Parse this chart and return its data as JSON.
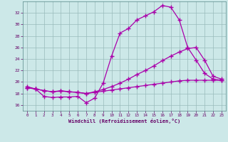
{
  "xlabel": "Windchill (Refroidissement éolien,°C)",
  "background_color": "#cce8e8",
  "line_color": "#aa00aa",
  "grid_color": "#99bbbb",
  "xlim": [
    -0.5,
    23.5
  ],
  "ylim": [
    15.0,
    34.0
  ],
  "yticks": [
    16,
    18,
    20,
    22,
    24,
    26,
    28,
    30,
    32
  ],
  "xticks": [
    0,
    1,
    2,
    3,
    4,
    5,
    6,
    7,
    8,
    9,
    10,
    11,
    12,
    13,
    14,
    15,
    16,
    17,
    18,
    19,
    20,
    21,
    22,
    23
  ],
  "line1_x": [
    0,
    1,
    2,
    3,
    4,
    5,
    6,
    7,
    8,
    9,
    10,
    11,
    12,
    13,
    14,
    15,
    16,
    17,
    18,
    19,
    20,
    21,
    22,
    23
  ],
  "line1_y": [
    19.2,
    18.8,
    17.5,
    17.3,
    17.4,
    17.4,
    17.5,
    16.4,
    17.2,
    19.8,
    24.5,
    28.5,
    29.3,
    30.8,
    31.5,
    32.2,
    33.3,
    33.0,
    30.8,
    26.0,
    23.8,
    21.5,
    20.5,
    20.3
  ],
  "line2_x": [
    0,
    1,
    2,
    3,
    4,
    5,
    6,
    7,
    8,
    9,
    10,
    11,
    12,
    13,
    14,
    15,
    16,
    17,
    18,
    19,
    20,
    21,
    22,
    23
  ],
  "line2_y": [
    19.0,
    18.8,
    18.5,
    18.3,
    18.5,
    18.3,
    18.2,
    18.0,
    18.3,
    18.7,
    19.2,
    19.8,
    20.5,
    21.3,
    22.0,
    22.8,
    23.7,
    24.5,
    25.2,
    25.8,
    26.0,
    23.8,
    21.0,
    20.5
  ],
  "line3_x": [
    0,
    1,
    2,
    3,
    4,
    5,
    6,
    7,
    8,
    9,
    10,
    11,
    12,
    13,
    14,
    15,
    16,
    17,
    18,
    19,
    20,
    21,
    22,
    23
  ],
  "line3_y": [
    19.0,
    18.8,
    18.5,
    18.3,
    18.4,
    18.3,
    18.2,
    18.0,
    18.2,
    18.4,
    18.6,
    18.8,
    19.0,
    19.2,
    19.4,
    19.6,
    19.8,
    20.0,
    20.2,
    20.3,
    20.3,
    20.3,
    20.3,
    20.3
  ]
}
